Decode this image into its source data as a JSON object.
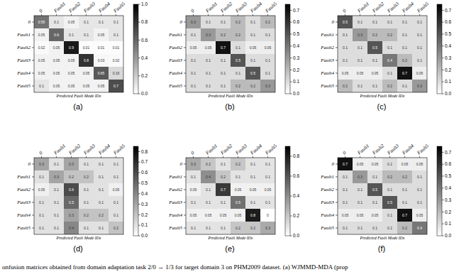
{
  "chart_data": [
    {
      "type": "heatmap",
      "title": "(a)",
      "x_label": "Predicted Fault Mode IDs",
      "x_categories": [
        "0",
        "Fault1",
        "Fault2",
        "Fault3",
        "Fault4",
        "Fault5"
      ],
      "y_categories": [
        "0",
        "Fault1",
        "Fault2",
        "Fault3",
        "Fault4",
        "Fault5"
      ],
      "cells": [
        [
          0.55,
          0.1,
          0.05,
          0.1,
          0.1,
          0.1
        ],
        [
          0.05,
          0.6,
          0.1,
          0.1,
          0.05,
          0.1
        ],
        [
          0.02,
          0.05,
          0.9,
          0.01,
          0.01,
          0.01
        ],
        [
          0.05,
          0.05,
          0.05,
          0.8,
          0.03,
          0.02
        ],
        [
          0.05,
          0.05,
          0.05,
          0.05,
          0.65,
          0.15
        ],
        [
          0.1,
          0.05,
          0.05,
          0.05,
          0.05,
          0.7
        ]
      ],
      "data_labels": true,
      "colorbar_range": [
        0,
        1.0
      ],
      "colorbar_ticks": [
        {
          "value": 0,
          "label": "0.0"
        },
        0.2,
        0.4,
        0.6,
        0.8,
        {
          "value": 1,
          "label": "1.0"
        }
      ]
    },
    {
      "type": "heatmap",
      "title": "(b)",
      "x_label": "Predicted Fault Mode IDs",
      "x_categories": [
        "0",
        "Fault1",
        "Fault2",
        "Fault3",
        "Fault4",
        "Fault5"
      ],
      "y_categories": [
        "0",
        "Fault1",
        "Fault2",
        "Fault3",
        "Fault4",
        "Fault5"
      ],
      "cells": [
        [
          0.3,
          0.1,
          0.1,
          0.2,
          0.1,
          0.2
        ],
        [
          0.1,
          0.3,
          0.2,
          0.2,
          0.1,
          0.1
        ],
        [
          0.05,
          0.05,
          0.7,
          0.1,
          0.05,
          0.05
        ],
        [
          0.1,
          0.1,
          0.1,
          0.5,
          0.1,
          0.1
        ],
        [
          0.1,
          0.1,
          0.1,
          0.1,
          0.5,
          0.1
        ],
        [
          0.1,
          0.1,
          0.1,
          0.2,
          0.2,
          0.3
        ]
      ],
      "data_labels": true,
      "colorbar_range": [
        0,
        0.75
      ],
      "colorbar_ticks": [
        {
          "value": 0,
          "label": "0.0"
        },
        0.1,
        0.2,
        0.3,
        0.4,
        0.5,
        0.6,
        0.7
      ]
    },
    {
      "type": "heatmap",
      "title": "(c)",
      "x_label": "Predicted Fault Mode IDs",
      "x_categories": [
        "0",
        "Fault1",
        "Fault2",
        "Fault3",
        "Fault4",
        "Fault5"
      ],
      "y_categories": [
        "0",
        "Fault1",
        "Fault2",
        "Fault3",
        "Fault4",
        "Fault5"
      ],
      "cells": [
        [
          0.5,
          0.1,
          0.1,
          0.1,
          0.1,
          0.1
        ],
        [
          0.1,
          0.3,
          0.2,
          0.2,
          0.1,
          0.1
        ],
        [
          0.1,
          0.1,
          0.5,
          0.1,
          0.1,
          0.1
        ],
        [
          0.1,
          0.1,
          0.1,
          0.4,
          0.2,
          0.1
        ],
        [
          0.05,
          0.05,
          0.05,
          0.1,
          0.7,
          0.05
        ],
        [
          0.2,
          0.1,
          0.1,
          0.2,
          0.1,
          0.3
        ]
      ],
      "data_labels": true,
      "colorbar_range": [
        0,
        0.75
      ],
      "colorbar_ticks": [
        {
          "value": 0,
          "label": "0.0"
        },
        0.1,
        0.2,
        0.3,
        0.4,
        0.5,
        0.6,
        0.7
      ]
    },
    {
      "type": "heatmap",
      "title": "(d)",
      "x_label": "Predicted Fault Mode IDs",
      "x_categories": [
        "0",
        "Fault1",
        "Fault2",
        "Fault3",
        "Fault4",
        "Fault5"
      ],
      "y_categories": [
        "0",
        "Fault1",
        "Fault2",
        "Fault3",
        "Fault4",
        "Fault5"
      ],
      "cells": [
        [
          0.3,
          0.1,
          0.3,
          0.1,
          0.1,
          0.1
        ],
        [
          0.1,
          0.3,
          0.2,
          0.2,
          0.1,
          0.1
        ],
        [
          0.05,
          0.1,
          0.6,
          0.1,
          0.1,
          0.05
        ],
        [
          0.1,
          0.1,
          0.5,
          0.1,
          0.1,
          0.1
        ],
        [
          0.1,
          0.1,
          0.3,
          0.2,
          0.2,
          0.1
        ],
        [
          0.1,
          0.1,
          0.4,
          0.1,
          0.1,
          0.2
        ]
      ],
      "data_labels": true,
      "colorbar_range": [
        0,
        0.85
      ],
      "colorbar_ticks": [
        {
          "value": 0,
          "label": "0.0"
        },
        0.1,
        0.2,
        0.3,
        0.4,
        0.5,
        0.6,
        0.7,
        0.8
      ]
    },
    {
      "type": "heatmap",
      "title": "(e)",
      "x_label": "Predicted Fault Mode IDs",
      "x_categories": [
        "0",
        "Fault1",
        "Fault2",
        "Fault3",
        "Fault4",
        "Fault5"
      ],
      "y_categories": [
        "0",
        "Fault1",
        "Fault2",
        "Fault3",
        "Fault4",
        "Fault5"
      ],
      "cells": [
        [
          0.3,
          0.2,
          0.1,
          0.2,
          0.1,
          0.1
        ],
        [
          0.1,
          0.4,
          0.2,
          0.1,
          0.1,
          0.1
        ],
        [
          0.05,
          0.1,
          0.7,
          0.05,
          0.05,
          0.05
        ],
        [
          0.1,
          0.1,
          0.1,
          0.5,
          0.1,
          0.1
        ],
        [
          0.05,
          0.05,
          0.05,
          0.05,
          0.8,
          0
        ],
        [
          0.1,
          0.1,
          0.1,
          0.2,
          0.2,
          0.3
        ]
      ],
      "data_labels": true,
      "colorbar_range": [
        0,
        0.9
      ],
      "colorbar_ticks": [
        {
          "value": 0,
          "label": "0.0"
        },
        0.2,
        0.4,
        0.6,
        0.8
      ]
    },
    {
      "type": "heatmap",
      "title": "(f)",
      "x_label": "Predicted Fault Mode IDs",
      "x_categories": [
        "0",
        "Fault1",
        "Fault2",
        "Fault3",
        "Fault4",
        "Fault5"
      ],
      "y_categories": [
        "0",
        "Fault1",
        "Fault2",
        "Fault3",
        "Fault4",
        "Fault5"
      ],
      "cells": [
        [
          0.7,
          0.05,
          0.05,
          0.1,
          0.05,
          0.05
        ],
        [
          0.1,
          0.3,
          0.1,
          0.2,
          0.2,
          0.1
        ],
        [
          0.1,
          0.1,
          0.5,
          0.1,
          0.1,
          0.1
        ],
        [
          0.1,
          0.1,
          0.1,
          0.5,
          0.1,
          0.1
        ],
        [
          0.05,
          0.05,
          0.05,
          0.1,
          0.7,
          0.05
        ],
        [
          0.1,
          0.1,
          0.1,
          0.1,
          0.2,
          0.4
        ]
      ],
      "data_labels": true,
      "colorbar_range": [
        0,
        0.75
      ],
      "colorbar_ticks": [
        {
          "value": 0,
          "label": "0.0"
        },
        0.1,
        0.2,
        0.3,
        0.4,
        0.5,
        0.6,
        0.7
      ]
    }
  ],
  "caption": "onfusion matrices obtained from domain adaptation task 2/0 → 1/3 for target domain 3 on PHM2009 dataset. (a) WJMMD-MDA (prop"
}
